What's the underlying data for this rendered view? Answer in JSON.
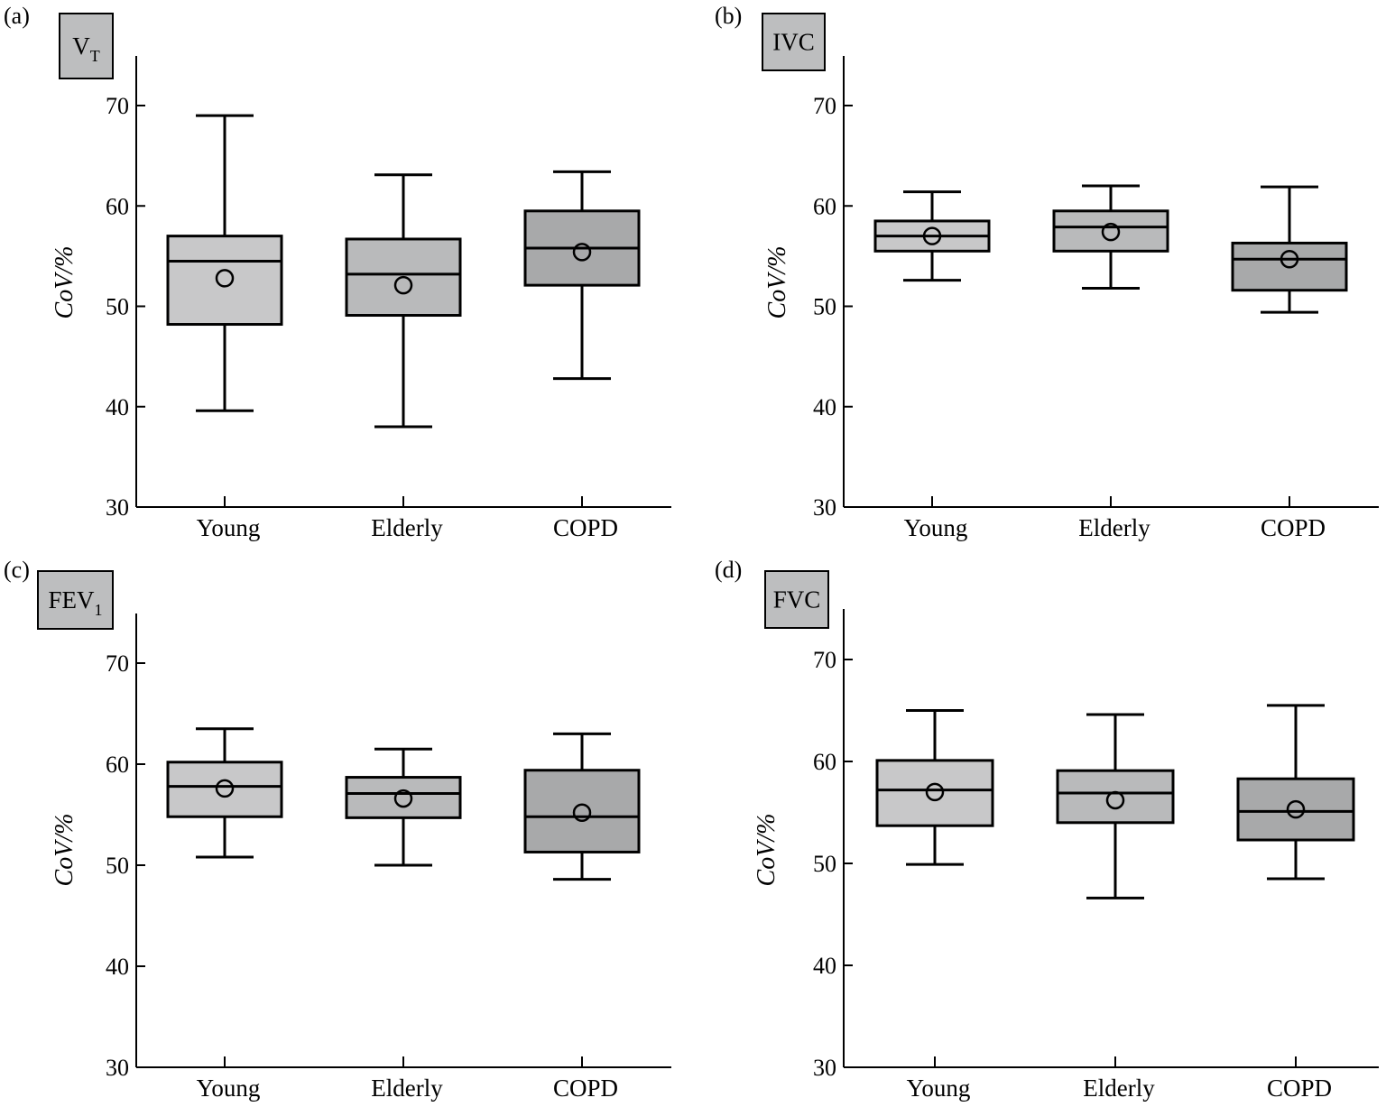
{
  "colors": {
    "box_light": "#c8c8c9",
    "box_mid": "#b9babb",
    "box_dark": "#a8a9aa",
    "title_box": "#bdbebf",
    "stroke": "#000000"
  },
  "chart_data": [
    {
      "type": "box",
      "panel_label": "(a)",
      "title": "V",
      "title_sub": "T",
      "ylabel": "CoV/%",
      "ylim": [
        30,
        75
      ],
      "yticks": [
        "30",
        "40",
        "50",
        "60",
        "70"
      ],
      "categories": [
        "Young",
        "Elderly",
        "COPD"
      ],
      "boxes": [
        {
          "whisker_low": 39.6,
          "q1": 48.2,
          "median": 54.5,
          "q3": 57.0,
          "whisker_high": 69.0,
          "mean": 52.8
        },
        {
          "whisker_low": 38.0,
          "q1": 49.1,
          "median": 53.2,
          "q3": 56.7,
          "whisker_high": 63.1,
          "mean": 52.1
        },
        {
          "whisker_low": 42.8,
          "q1": 52.1,
          "median": 55.8,
          "q3": 59.5,
          "whisker_high": 63.4,
          "mean": 55.4
        }
      ]
    },
    {
      "type": "box",
      "panel_label": "(b)",
      "title": "IVC",
      "title_sub": "",
      "ylabel": "CoV/%",
      "ylim": [
        30,
        75
      ],
      "yticks": [
        "30",
        "40",
        "50",
        "60",
        "70"
      ],
      "categories": [
        "Young",
        "Elderly",
        "COPD"
      ],
      "boxes": [
        {
          "whisker_low": 52.6,
          "q1": 55.5,
          "median": 57.0,
          "q3": 58.5,
          "whisker_high": 61.4,
          "mean": 57.0
        },
        {
          "whisker_low": 51.8,
          "q1": 55.5,
          "median": 57.9,
          "q3": 59.5,
          "whisker_high": 62.0,
          "mean": 57.4
        },
        {
          "whisker_low": 49.4,
          "q1": 51.6,
          "median": 54.7,
          "q3": 56.3,
          "whisker_high": 61.9,
          "mean": 54.7
        }
      ]
    },
    {
      "type": "box",
      "panel_label": "(c)",
      "title": "FEV",
      "title_sub": "1",
      "ylabel": "CoV/%",
      "ylim": [
        30,
        75
      ],
      "yticks": [
        "30",
        "40",
        "50",
        "60",
        "70"
      ],
      "categories": [
        "Young",
        "Elderly",
        "COPD"
      ],
      "boxes": [
        {
          "whisker_low": 50.8,
          "q1": 54.8,
          "median": 57.8,
          "q3": 60.2,
          "whisker_high": 63.5,
          "mean": 57.6
        },
        {
          "whisker_low": 50.0,
          "q1": 54.7,
          "median": 57.1,
          "q3": 58.7,
          "whisker_high": 61.5,
          "mean": 56.6
        },
        {
          "whisker_low": 48.6,
          "q1": 51.3,
          "median": 54.8,
          "q3": 59.4,
          "whisker_high": 63.0,
          "mean": 55.2
        }
      ]
    },
    {
      "type": "box",
      "panel_label": "(d)",
      "title": "FVC",
      "title_sub": "",
      "ylabel": "CoV/%",
      "ylim": [
        30,
        75
      ],
      "yticks": [
        "30",
        "40",
        "50",
        "60",
        "70"
      ],
      "categories": [
        "Young",
        "Elderly",
        "COPD"
      ],
      "boxes": [
        {
          "whisker_low": 49.9,
          "q1": 53.7,
          "median": 57.2,
          "q3": 60.1,
          "whisker_high": 65.0,
          "mean": 57.0
        },
        {
          "whisker_low": 46.6,
          "q1": 54.0,
          "median": 56.9,
          "q3": 59.1,
          "whisker_high": 64.6,
          "mean": 56.2
        },
        {
          "whisker_low": 48.5,
          "q1": 52.3,
          "median": 55.1,
          "q3": 58.3,
          "whisker_high": 65.5,
          "mean": 55.3
        }
      ]
    }
  ]
}
